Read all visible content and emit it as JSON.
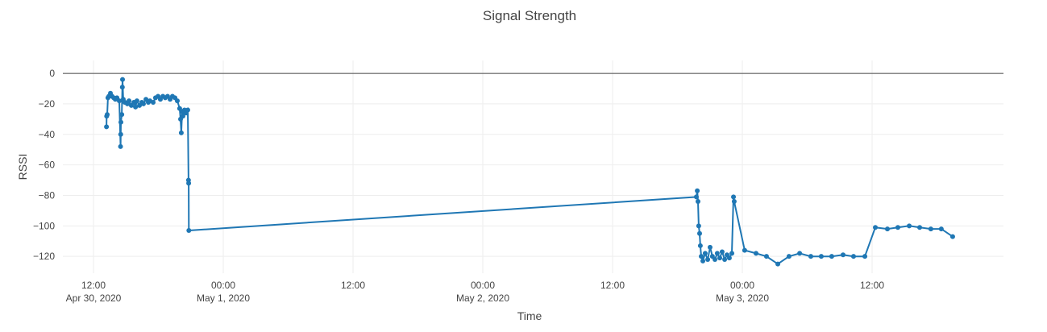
{
  "chart_data": {
    "type": "line",
    "title": "Signal Strength",
    "x_label": "Time",
    "y_label": "RSSI",
    "color": "#1f77b4",
    "grid": true,
    "zero_line": true,
    "x": [
      "2020-04-30 13:12",
      "2020-04-30 13:13",
      "2020-04-30 13:16",
      "2020-04-30 13:20",
      "2020-04-30 13:25",
      "2020-04-30 13:34",
      "2020-04-30 13:43",
      "2020-04-30 13:52",
      "2020-04-30 14:01",
      "2020-04-30 14:10",
      "2020-04-30 14:23",
      "2020-04-30 14:30",
      "2020-04-30 14:31",
      "2020-04-30 14:32",
      "2020-04-30 14:37",
      "2020-04-30 14:40",
      "2020-04-30 14:41",
      "2020-04-30 14:45",
      "2020-04-30 14:54",
      "2020-04-30 15:08",
      "2020-04-30 15:17",
      "2020-04-30 15:30",
      "2020-04-30 15:44",
      "2020-04-30 15:53",
      "2020-04-30 16:01",
      "2020-04-30 16:15",
      "2020-04-30 16:28",
      "2020-04-30 16:37",
      "2020-04-30 16:51",
      "2020-04-30 17:04",
      "2020-04-30 17:13",
      "2020-04-30 17:31",
      "2020-04-30 17:44",
      "2020-04-30 17:58",
      "2020-04-30 18:11",
      "2020-04-30 18:25",
      "2020-04-30 18:38",
      "2020-04-30 18:51",
      "2020-04-30 19:05",
      "2020-04-30 19:18",
      "2020-04-30 19:32",
      "2020-04-30 19:45",
      "2020-04-30 19:58",
      "2020-04-30 20:03",
      "2020-04-30 20:07",
      "2020-04-30 20:12",
      "2020-04-30 20:16",
      "2020-04-30 20:25",
      "2020-04-30 20:34",
      "2020-04-30 20:43",
      "2020-04-30 20:47",
      "2020-04-30 20:48",
      "2020-04-30 20:49",
      "2020-05-02 19:45",
      "2020-05-02 19:50",
      "2020-05-02 19:54",
      "2020-05-02 19:58",
      "2020-05-02 20:03",
      "2020-05-02 20:07",
      "2020-05-02 20:12",
      "2020-05-02 20:21",
      "2020-05-02 20:34",
      "2020-05-02 20:48",
      "2020-05-02 21:01",
      "2020-05-02 21:14",
      "2020-05-02 21:28",
      "2020-05-02 21:41",
      "2020-05-02 21:55",
      "2020-05-02 22:08",
      "2020-05-02 22:22",
      "2020-05-02 22:35",
      "2020-05-02 22:48",
      "2020-05-02 23:02",
      "2020-05-02 23:11",
      "2020-05-02 23:15",
      "2020-05-03 00:13",
      "2020-05-03 01:16",
      "2020-05-03 02:14",
      "2020-05-03 03:17",
      "2020-05-03 04:19",
      "2020-05-03 05:18",
      "2020-05-03 06:20",
      "2020-05-03 07:18",
      "2020-05-03 08:16",
      "2020-05-03 09:19",
      "2020-05-03 10:17",
      "2020-05-03 11:20",
      "2020-05-03 12:18",
      "2020-05-03 13:25",
      "2020-05-03 14:23",
      "2020-05-03 15:26",
      "2020-05-03 16:24",
      "2020-05-03 17:26",
      "2020-05-03 18:24",
      "2020-05-03 19:27"
    ],
    "values": [
      -35,
      -28,
      -27,
      -16,
      -15,
      -13,
      -15,
      -16,
      -17,
      -16,
      -18,
      -48,
      -40,
      -32,
      -27,
      -9,
      -4,
      -17,
      -19,
      -20,
      -18,
      -21,
      -19,
      -22,
      -18,
      -21,
      -19,
      -20,
      -17,
      -19,
      -18,
      -19,
      -16,
      -15,
      -17,
      -15,
      -16,
      -15,
      -17,
      -15,
      -16,
      -18,
      -23,
      -30,
      -39,
      -25,
      -28,
      -24,
      -26,
      -24,
      -70,
      -72,
      -103,
      -81,
      -77,
      -84,
      -100,
      -105,
      -113,
      -120,
      -123,
      -118,
      -122,
      -114,
      -120,
      -122,
      -118,
      -121,
      -117,
      -122,
      -119,
      -121,
      -118,
      -81,
      -84,
      -116,
      -118,
      -120,
      -125,
      -120,
      -118,
      -120,
      -120,
      -120,
      -119,
      -120,
      -120,
      -101,
      -102,
      -101,
      -100,
      -101,
      -102,
      -102,
      -107
    ],
    "xlim": [
      "2020-04-30 09:10",
      "2020-05-04 00:09"
    ],
    "xticks": [
      {
        "value": "2020-04-30 12:00",
        "label": [
          "12:00",
          "Apr 30, 2020"
        ]
      },
      {
        "value": "2020-05-01 00:00",
        "label": [
          "00:00",
          "May 1, 2020"
        ]
      },
      {
        "value": "2020-05-01 12:00",
        "label": [
          "12:00"
        ]
      },
      {
        "value": "2020-05-02 00:00",
        "label": [
          "00:00",
          "May 2, 2020"
        ]
      },
      {
        "value": "2020-05-02 12:00",
        "label": [
          "12:00"
        ]
      },
      {
        "value": "2020-05-03 00:00",
        "label": [
          "00:00",
          "May 3, 2020"
        ]
      },
      {
        "value": "2020-05-03 12:00",
        "label": [
          "12:00"
        ]
      }
    ],
    "ylim": [
      -131,
      8.5
    ],
    "yticks": [
      0,
      {
        "value": -20,
        "label": "−20"
      },
      {
        "value": -40,
        "label": "−40"
      },
      {
        "value": -60,
        "label": "−60"
      },
      {
        "value": -80,
        "label": "−80"
      },
      {
        "value": -100,
        "label": "−100"
      },
      {
        "value": -120,
        "label": "−120"
      }
    ]
  }
}
